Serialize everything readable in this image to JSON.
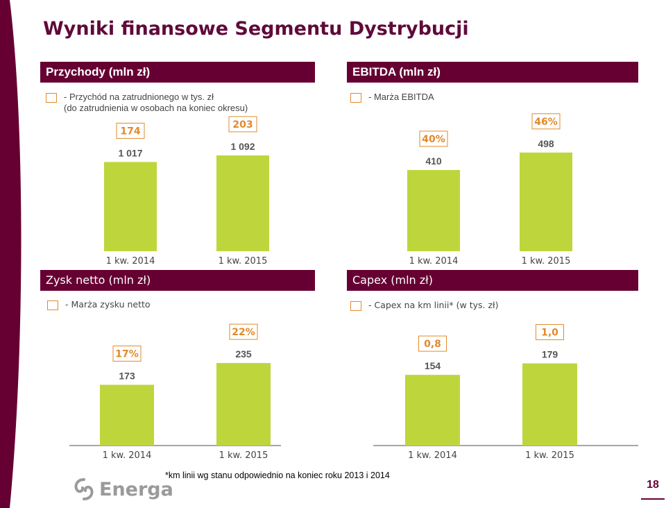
{
  "title": "Wyniki finansowe Segmentu Dystrybucji",
  "colors": {
    "bar": "#bed63c",
    "accent": "#e08a2b",
    "header": "#660033",
    "title": "#5f0a3a"
  },
  "chart_data": [
    {
      "id": "revenue",
      "type": "bar",
      "title": "Przychody (mln zł)",
      "legend": [
        "- Przychód na zatrudnionego w tys. zł",
        "(do zatrudnienia w osobach na koniec okresu)"
      ],
      "categories": [
        "1 kw. 2014",
        "1 kw. 2015"
      ],
      "values": [
        1017,
        1092
      ],
      "value_labels": [
        "1 017",
        "1 092"
      ],
      "secondary_labels": [
        "174",
        "203"
      ]
    },
    {
      "id": "ebitda",
      "type": "bar",
      "title": "EBITDA (mln zł)",
      "legend": [
        "- Marża EBITDA"
      ],
      "categories": [
        "1 kw. 2014",
        "1 kw. 2015"
      ],
      "values": [
        410,
        498
      ],
      "value_labels": [
        "410",
        "498"
      ],
      "secondary_labels": [
        "40%",
        "46%"
      ]
    },
    {
      "id": "net-profit",
      "type": "bar",
      "title": "Zysk netto (mln zł)",
      "legend": [
        "- Marża zysku netto"
      ],
      "categories": [
        "1 kw. 2014",
        "1 kw. 2015"
      ],
      "values": [
        173,
        235
      ],
      "value_labels": [
        "173",
        "235"
      ],
      "secondary_labels": [
        "17%",
        "22%"
      ]
    },
    {
      "id": "capex",
      "type": "bar",
      "title": "Capex (mln zł)",
      "legend": [
        "- Capex na km linii* (w tys. zł)"
      ],
      "categories": [
        "1 kw. 2014",
        "1 kw. 2015"
      ],
      "values": [
        154,
        179
      ],
      "value_labels": [
        "154",
        "179"
      ],
      "secondary_labels": [
        "0,8",
        "1,0"
      ]
    }
  ],
  "footnote": "*km linii wg stanu odpowiednio na koniec roku 2013  i 2014",
  "logo": "Energa",
  "page_number": "18"
}
